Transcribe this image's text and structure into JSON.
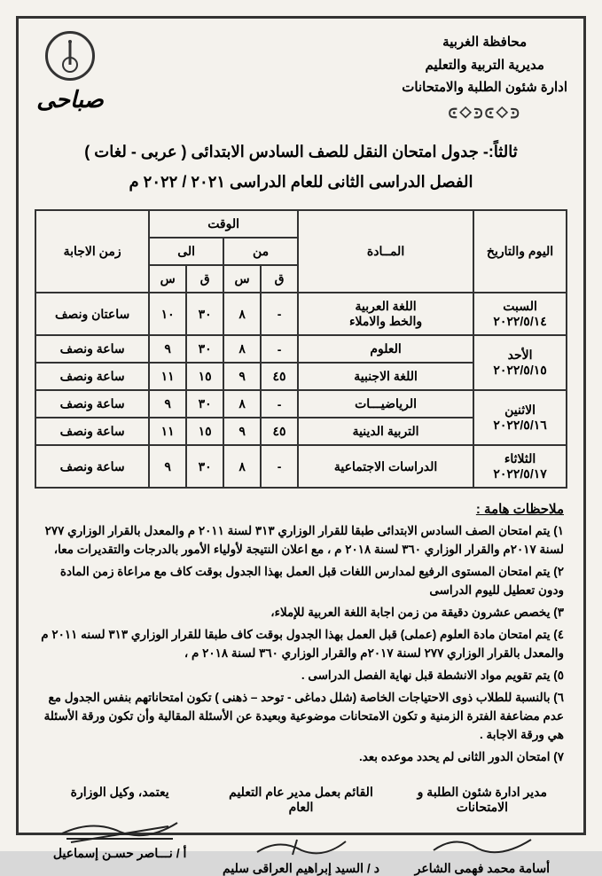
{
  "header": {
    "governorate": "محافظة الغربية",
    "directorate": "مديرية التربية والتعليم",
    "department": "ادارة شئون الطلبة والامتحانات",
    "session": "صباحى"
  },
  "title": {
    "line1": "ثالثاً:- جدول امتحان النقل للصف السادس الابتدائى ( عربى - لغات )",
    "line2": "الفصل الدراسى الثانى للعام الدراسى ٢٠٢١ / ٢٠٢٢ م"
  },
  "table": {
    "headers": {
      "date": "اليوم والتاريخ",
      "subject": "المــادة",
      "time": "الوقت",
      "from": "من",
      "to": "الى",
      "min": "ق",
      "hr": "س",
      "duration": "زمن الاجابة"
    },
    "rows": [
      {
        "date_l1": "السبت",
        "date_l2": "٢٠٢٢/٥/١٤",
        "subject_l1": "اللغة العربية",
        "subject_l2": "والخط والاملاء",
        "from_m": "-",
        "from_h": "٨",
        "to_m": "٣٠",
        "to_h": "١٠",
        "dur": "ساعتان ونصف",
        "rowspan_date": 1
      },
      {
        "date_l1": "الأحد",
        "date_l2": "٢٠٢٢/٥/١٥",
        "subject_l1": "العلوم",
        "subject_l2": "",
        "from_m": "-",
        "from_h": "٨",
        "to_m": "٣٠",
        "to_h": "٩",
        "dur": "ساعة ونصف",
        "share_date": true
      },
      {
        "date_l1": "",
        "date_l2": "",
        "subject_l1": "اللغة الاجنبية",
        "subject_l2": "",
        "from_m": "٤٥",
        "from_h": "٩",
        "to_m": "١٥",
        "to_h": "١١",
        "dur": "ساعة ونصف"
      },
      {
        "date_l1": "الاثنين",
        "date_l2": "٢٠٢٢/٥/١٦",
        "subject_l1": "الرياضيـــات",
        "subject_l2": "",
        "from_m": "-",
        "from_h": "٨",
        "to_m": "٣٠",
        "to_h": "٩",
        "dur": "ساعة ونصف",
        "share_date": true
      },
      {
        "date_l1": "",
        "date_l2": "",
        "subject_l1": "التربية الدينية",
        "subject_l2": "",
        "from_m": "٤٥",
        "from_h": "٩",
        "to_m": "١٥",
        "to_h": "١١",
        "dur": "ساعة ونصف"
      },
      {
        "date_l1": "الثلاثاء",
        "date_l2": "٢٠٢٢/٥/١٧",
        "subject_l1": "الدراسات الاجتماعية",
        "subject_l2": "",
        "from_m": "-",
        "from_h": "٨",
        "to_m": "٣٠",
        "to_h": "٩",
        "dur": "ساعة ونصف"
      }
    ]
  },
  "notes": {
    "title": "ملاحظات هامة :",
    "items": [
      "١) يتم امتحان الصف السادس الابتدائى طبقا للقرار الوزاري ٣١٣ لسنة ٢٠١١ م والمعدل بالقرار الوزاري ٢٧٧ لسنة ٢٠١٧م والقرار الوزاري ٣٦٠ لسنة ٢٠١٨ م ، مع اعلان النتيجة لأولياء الأمور بالدرجات والتقديرات معا،",
      "٢) يتم امتحان المستوى الرفيع لمدارس اللغات قبل العمل بهذا الجدول بوقت كاف مع مراعاة زمن المادة ودون تعطيل لليوم الدراسى",
      "٣) يخصص عشرون دقيقة من زمن اجابة اللغة العربية للإملاء،",
      "٤) يتم امتحان مادة العلوم (عملى) قبل العمل بهذا الجدول بوقت كاف طبقا للقرار الوزاري ٣١٣ لسنه ٢٠١١ م والمعدل بالقرار الوزاري ٢٧٧ لسنة ٢٠١٧م والقرار الوزاري ٣٦٠ لسنة ٢٠١٨ م ،",
      "٥) يتم تقويم مواد الانشطة قبل نهاية الفصل الدراسى .",
      "٦) بالنسبة للطلاب ذوى الاحتياجات الخاصة (شلل دماغى - توحد – ذهنى ) تكون امتحاناتهم بنفس الجدول مع عدم مضاعفة الفترة الزمنية و تكون الامتحانات موضوعية وبعيدة عن الأسئلة المقالية وأن تكون ورقة الأسئلة هي ورقة الاجابة .",
      "٧) امتحان الدور الثانى لم يحدد موعده بعد."
    ]
  },
  "signatures": {
    "col1": {
      "title": "مدير ادارة شئون الطلبة و الامتحانات",
      "name": "أسامة محمد فهمى الشاعر"
    },
    "col2": {
      "title": "القائم بعمل مدير عام التعليم العام",
      "name": "د / السيد إبراهيم العراقى سليم"
    },
    "col3": {
      "title": "يعتمد، وكيل الوزارة",
      "name": "أ / نـــاصر حسـن إسماعيل"
    }
  },
  "style": {
    "border_color": "#333333",
    "bg": "#f4f2ed",
    "text": "#1b1b1b"
  }
}
